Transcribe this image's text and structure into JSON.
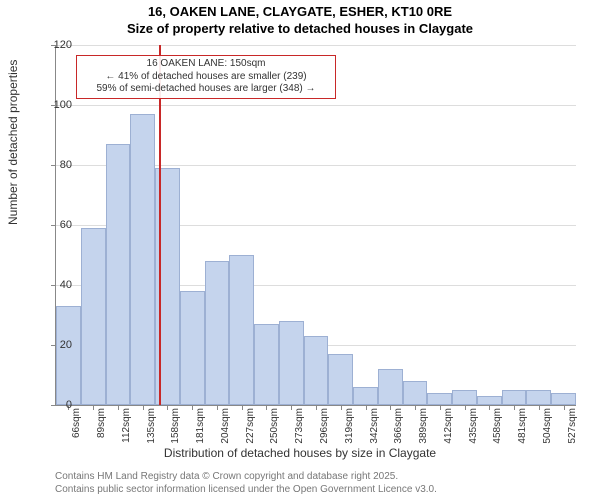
{
  "header": {
    "address": "16, OAKEN LANE, CLAYGATE, ESHER, KT10 0RE",
    "subtitle": "Size of property relative to detached houses in Claygate"
  },
  "chart": {
    "type": "histogram",
    "ylabel": "Number of detached properties",
    "xlabel": "Distribution of detached houses by size in Claygate",
    "ylim": [
      0,
      120
    ],
    "ytick_step": 20,
    "xticks": [
      "66sqm",
      "89sqm",
      "112sqm",
      "135sqm",
      "158sqm",
      "181sqm",
      "204sqm",
      "227sqm",
      "250sqm",
      "273sqm",
      "296sqm",
      "319sqm",
      "342sqm",
      "366sqm",
      "389sqm",
      "412sqm",
      "435sqm",
      "458sqm",
      "481sqm",
      "504sqm",
      "527sqm"
    ],
    "values": [
      33,
      59,
      87,
      97,
      79,
      38,
      48,
      50,
      27,
      28,
      23,
      17,
      6,
      12,
      8,
      4,
      5,
      3,
      5,
      5,
      4
    ],
    "bar_fill": "#c5d4ed",
    "bar_stroke": "#9db0d3",
    "grid_color": "#dddddd",
    "axis_color": "#888888",
    "background_color": "#ffffff",
    "label_fontsize": 12,
    "tick_fontsize": 11,
    "xtick_fontsize": 10,
    "marker": {
      "position_sqm": 150,
      "color": "#c82828",
      "line1": "16 OAKEN LANE: 150sqm",
      "line2": "← 41% of detached houses are smaller (239)",
      "line3": "59% of semi-detached houses are larger (348) →"
    }
  },
  "footer": {
    "line1": "Contains HM Land Registry data © Crown copyright and database right 2025.",
    "line2": "Contains public sector information licensed under the Open Government Licence v3.0."
  }
}
